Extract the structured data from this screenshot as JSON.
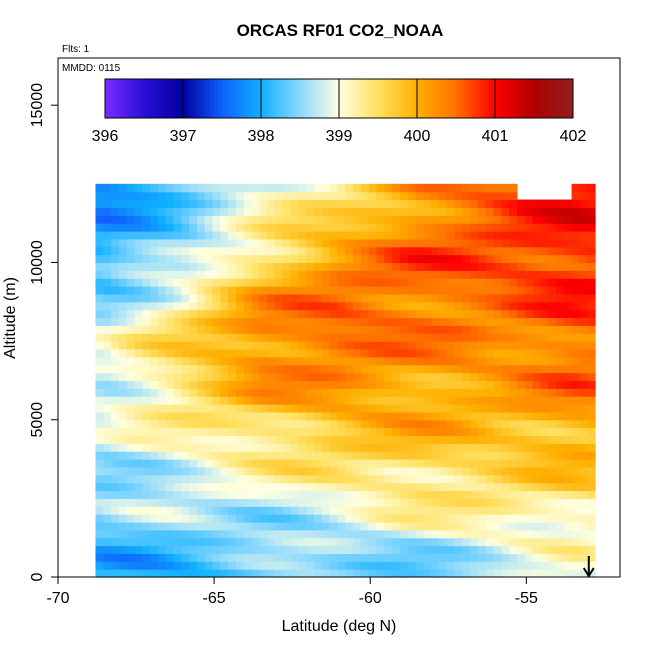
{
  "chart_data": {
    "type": "heatmap",
    "title": "ORCAS RF01 CO2_NOAA",
    "xlabel": "Latitude (deg N)",
    "ylabel": "Altitude (m)",
    "xlim": [
      -70,
      -52
    ],
    "ylim": [
      0,
      16500
    ],
    "x_ticks": [
      "-70",
      "-65",
      "-60",
      "-55"
    ],
    "y_ticks": [
      "0",
      "5000",
      "10000",
      "15000"
    ],
    "notes": {
      "flights": "Flts: 1",
      "date": "MMDD: 0115"
    },
    "colorbar": {
      "min": 396,
      "max": 402,
      "tick_labels": [
        "396",
        "397",
        "398",
        "399",
        "400",
        "401",
        "402"
      ],
      "colors": [
        "#7b2cff",
        "#2a0fd8",
        "#0000a0",
        "#1060ff",
        "#10b0ff",
        "#8ad8ff",
        "#ffffe0",
        "#ffe060",
        "#ffb000",
        "#ff7000",
        "#ff0000",
        "#b00000",
        "#902020"
      ]
    },
    "data_extent": {
      "lat_min": -68.8,
      "lat_max": -53,
      "alt_max": 12400
    },
    "profiles": [
      {
        "altitude_m": 12000,
        "values": [
          397.8,
          398.3,
          398.9,
          399.4,
          400.2,
          400.6,
          400.9
        ]
      },
      {
        "altitude_m": 10000,
        "values": [
          398.1,
          398.6,
          399.6,
          400.3,
          400.6,
          400.7,
          400.9
        ]
      },
      {
        "altitude_m": 8000,
        "values": [
          398.8,
          399.6,
          400.4,
          400.6,
          400.4,
          400.3,
          400.6
        ]
      },
      {
        "altitude_m": 6000,
        "values": [
          398.9,
          399.5,
          400.1,
          400.2,
          400.1,
          400.1,
          400.4
        ]
      },
      {
        "altitude_m": 4000,
        "values": [
          398.7,
          399.0,
          399.3,
          399.6,
          399.8,
          399.7,
          399.9
        ]
      },
      {
        "altitude_m": 2000,
        "values": [
          398.4,
          398.6,
          398.7,
          398.9,
          399.1,
          399.3,
          399.3
        ]
      },
      {
        "altitude_m": 500,
        "values": [
          398.0,
          398.2,
          398.3,
          398.4,
          398.5,
          398.6,
          398.9
        ]
      }
    ],
    "profile_latitudes": [
      -68.5,
      -66,
      -63.5,
      -61,
      -58.5,
      -56,
      -53.5
    ],
    "marker": {
      "symbol": "down-arrow",
      "latitude": -53
    }
  }
}
